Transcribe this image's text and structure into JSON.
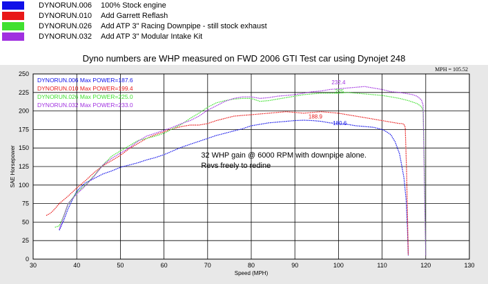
{
  "legend": [
    {
      "run": "DYNORUN.006",
      "description": "100% Stock engine",
      "color": "#1010e8"
    },
    {
      "run": "DYNORUN.010",
      "description": "Add Garrett Reflash",
      "color": "#e81818"
    },
    {
      "run": "DYNORUN.026",
      "description": "Add ATP 3\" Racing Downpipe - still stock exhaust",
      "color": "#40e030"
    },
    {
      "run": "DYNORUN.032",
      "description": "Add ATP 3\" Modular Intake Kit",
      "color": "#a030e0"
    }
  ],
  "heading": "Dyno numbers are WHP measured on FWD 2006 GTI Test car using Dynojet 248",
  "chart_data": {
    "type": "line",
    "title": "",
    "xlabel": "Speed (MPH)",
    "ylabel": "SAE Horsepower",
    "xlim": [
      30,
      130
    ],
    "ylim": [
      0,
      250
    ],
    "x_ticks": [
      30,
      40,
      50,
      60,
      70,
      80,
      90,
      100,
      110,
      120,
      130
    ],
    "y_ticks": [
      0,
      25,
      50,
      75,
      100,
      125,
      150,
      175,
      200,
      225,
      250
    ],
    "grid": true,
    "readout": "MPH = 105.52",
    "background": "#e8e8e8",
    "plot_background": "#ffffff",
    "max_labels": [
      {
        "text": "DYNORUN.006  Max POWER=187.6",
        "color": "#1010e8"
      },
      {
        "text": "DYNORUN.010  Max POWER=199.4",
        "color": "#e81818"
      },
      {
        "text": "DYNORUN.026  Max POWER=225.0",
        "color": "#40e030"
      },
      {
        "text": "DYNORUN.032  Max POWER=233.0",
        "color": "#a030e0"
      }
    ],
    "annotations": [
      {
        "text": "32 WHP gain @ 6000 RPM with downpipe alone.",
        "x": 68.5,
        "y": 137
      },
      {
        "text": "Revs freely to redine",
        "x": 68.5,
        "y": 123
      }
    ],
    "peak_labels": [
      {
        "text": "232.4",
        "x": 100,
        "y": 236,
        "color": "#a030e0"
      },
      {
        "text": "225",
        "x": 100.2,
        "y": 224,
        "color": "#40e030"
      },
      {
        "text": "188.9",
        "x": 94.7,
        "y": 190,
        "color": "#e81818"
      },
      {
        "text": "180.6",
        "x": 100.3,
        "y": 181,
        "color": "#1010e8"
      }
    ],
    "series": [
      {
        "name": "DYNORUN.006",
        "color": "#1010e8",
        "x": [
          36,
          37,
          38,
          39,
          40,
          42,
          44,
          46,
          48,
          50,
          52,
          54,
          56,
          58,
          60,
          62,
          64,
          66,
          68,
          70,
          72,
          74,
          76,
          78,
          80,
          82,
          84,
          86,
          88,
          90,
          92,
          94,
          96,
          98,
          100,
          102,
          104,
          106,
          108,
          110,
          111,
          112,
          113,
          114,
          115,
          115.5,
          115.8,
          116
        ],
        "y": [
          39,
          52,
          68,
          80,
          92,
          103,
          109,
          115,
          119,
          124,
          127,
          130,
          134,
          137,
          141,
          146,
          151,
          155,
          159,
          163,
          167,
          170,
          173,
          176,
          180,
          182,
          184,
          185,
          186,
          187,
          187.5,
          187,
          186,
          184,
          183,
          182,
          180,
          179,
          178,
          175,
          172,
          168,
          158,
          142,
          110,
          80,
          40,
          5
        ]
      },
      {
        "name": "DYNORUN.010",
        "color": "#e81818",
        "x": [
          33,
          34,
          35,
          36,
          38,
          40,
          42,
          44,
          46,
          48,
          50,
          52,
          54,
          56,
          58,
          60,
          62,
          64,
          66,
          68,
          70,
          72,
          74,
          76,
          78,
          80,
          82,
          84,
          86,
          88,
          90,
          92,
          94,
          96,
          98,
          100,
          102,
          104,
          106,
          108,
          110,
          112,
          114,
          114.6,
          115,
          115.3,
          115.6,
          116
        ],
        "y": [
          59,
          62,
          68,
          75,
          85,
          96,
          106,
          117,
          126,
          133,
          140,
          149,
          156,
          163,
          168,
          172,
          176,
          179,
          181,
          181,
          183,
          187,
          190,
          193,
          194,
          195,
          196,
          197,
          198,
          199,
          198,
          197,
          198,
          199,
          198,
          197,
          195,
          193,
          191,
          189,
          187,
          185,
          183,
          183,
          182,
          178,
          120,
          5
        ]
      },
      {
        "name": "DYNORUN.026",
        "color": "#40e030",
        "x": [
          35,
          36,
          37,
          38,
          40,
          42,
          44,
          46,
          48,
          50,
          52,
          54,
          56,
          58,
          60,
          62,
          64,
          66,
          68,
          70,
          72,
          74,
          76,
          78,
          80,
          82,
          84,
          86,
          88,
          90,
          92,
          94,
          96,
          98,
          100,
          102,
          104,
          106,
          108,
          110,
          112,
          114,
          116,
          117,
          118,
          119,
          119.4,
          119.7,
          120
        ],
        "y": [
          43,
          45,
          58,
          74,
          90,
          100,
          113,
          127,
          139,
          146,
          153,
          160,
          163,
          166,
          170,
          176,
          182,
          190,
          197,
          205,
          211,
          214,
          216,
          217,
          217,
          213,
          214,
          216,
          218,
          220,
          222,
          223,
          224,
          224,
          224,
          225,
          224,
          223,
          222,
          221,
          219,
          217,
          214,
          212,
          210,
          206,
          200,
          120,
          5
        ]
      },
      {
        "name": "DYNORUN.032",
        "color": "#a030e0",
        "x": [
          36,
          38,
          40,
          42,
          44,
          46,
          48,
          50,
          52,
          54,
          56,
          58,
          60,
          62,
          64,
          66,
          68,
          70,
          72,
          74,
          76,
          78,
          80,
          82,
          84,
          86,
          88,
          90,
          92,
          94,
          96,
          98,
          100,
          102,
          104,
          106,
          108,
          110,
          112,
          114,
          116,
          117,
          118,
          119,
          119.4,
          119.7,
          120
        ],
        "y": [
          40,
          75,
          88,
          99,
          112,
          127,
          136,
          143,
          150,
          159,
          166,
          170,
          174,
          178,
          183,
          187,
          193,
          201,
          207,
          213,
          217,
          219,
          219,
          217,
          218,
          220,
          221,
          222,
          224,
          226,
          227,
          229,
          230,
          231,
          232,
          233,
          231,
          229,
          226,
          225,
          223,
          222,
          220,
          215,
          208,
          100,
          5
        ]
      }
    ]
  }
}
